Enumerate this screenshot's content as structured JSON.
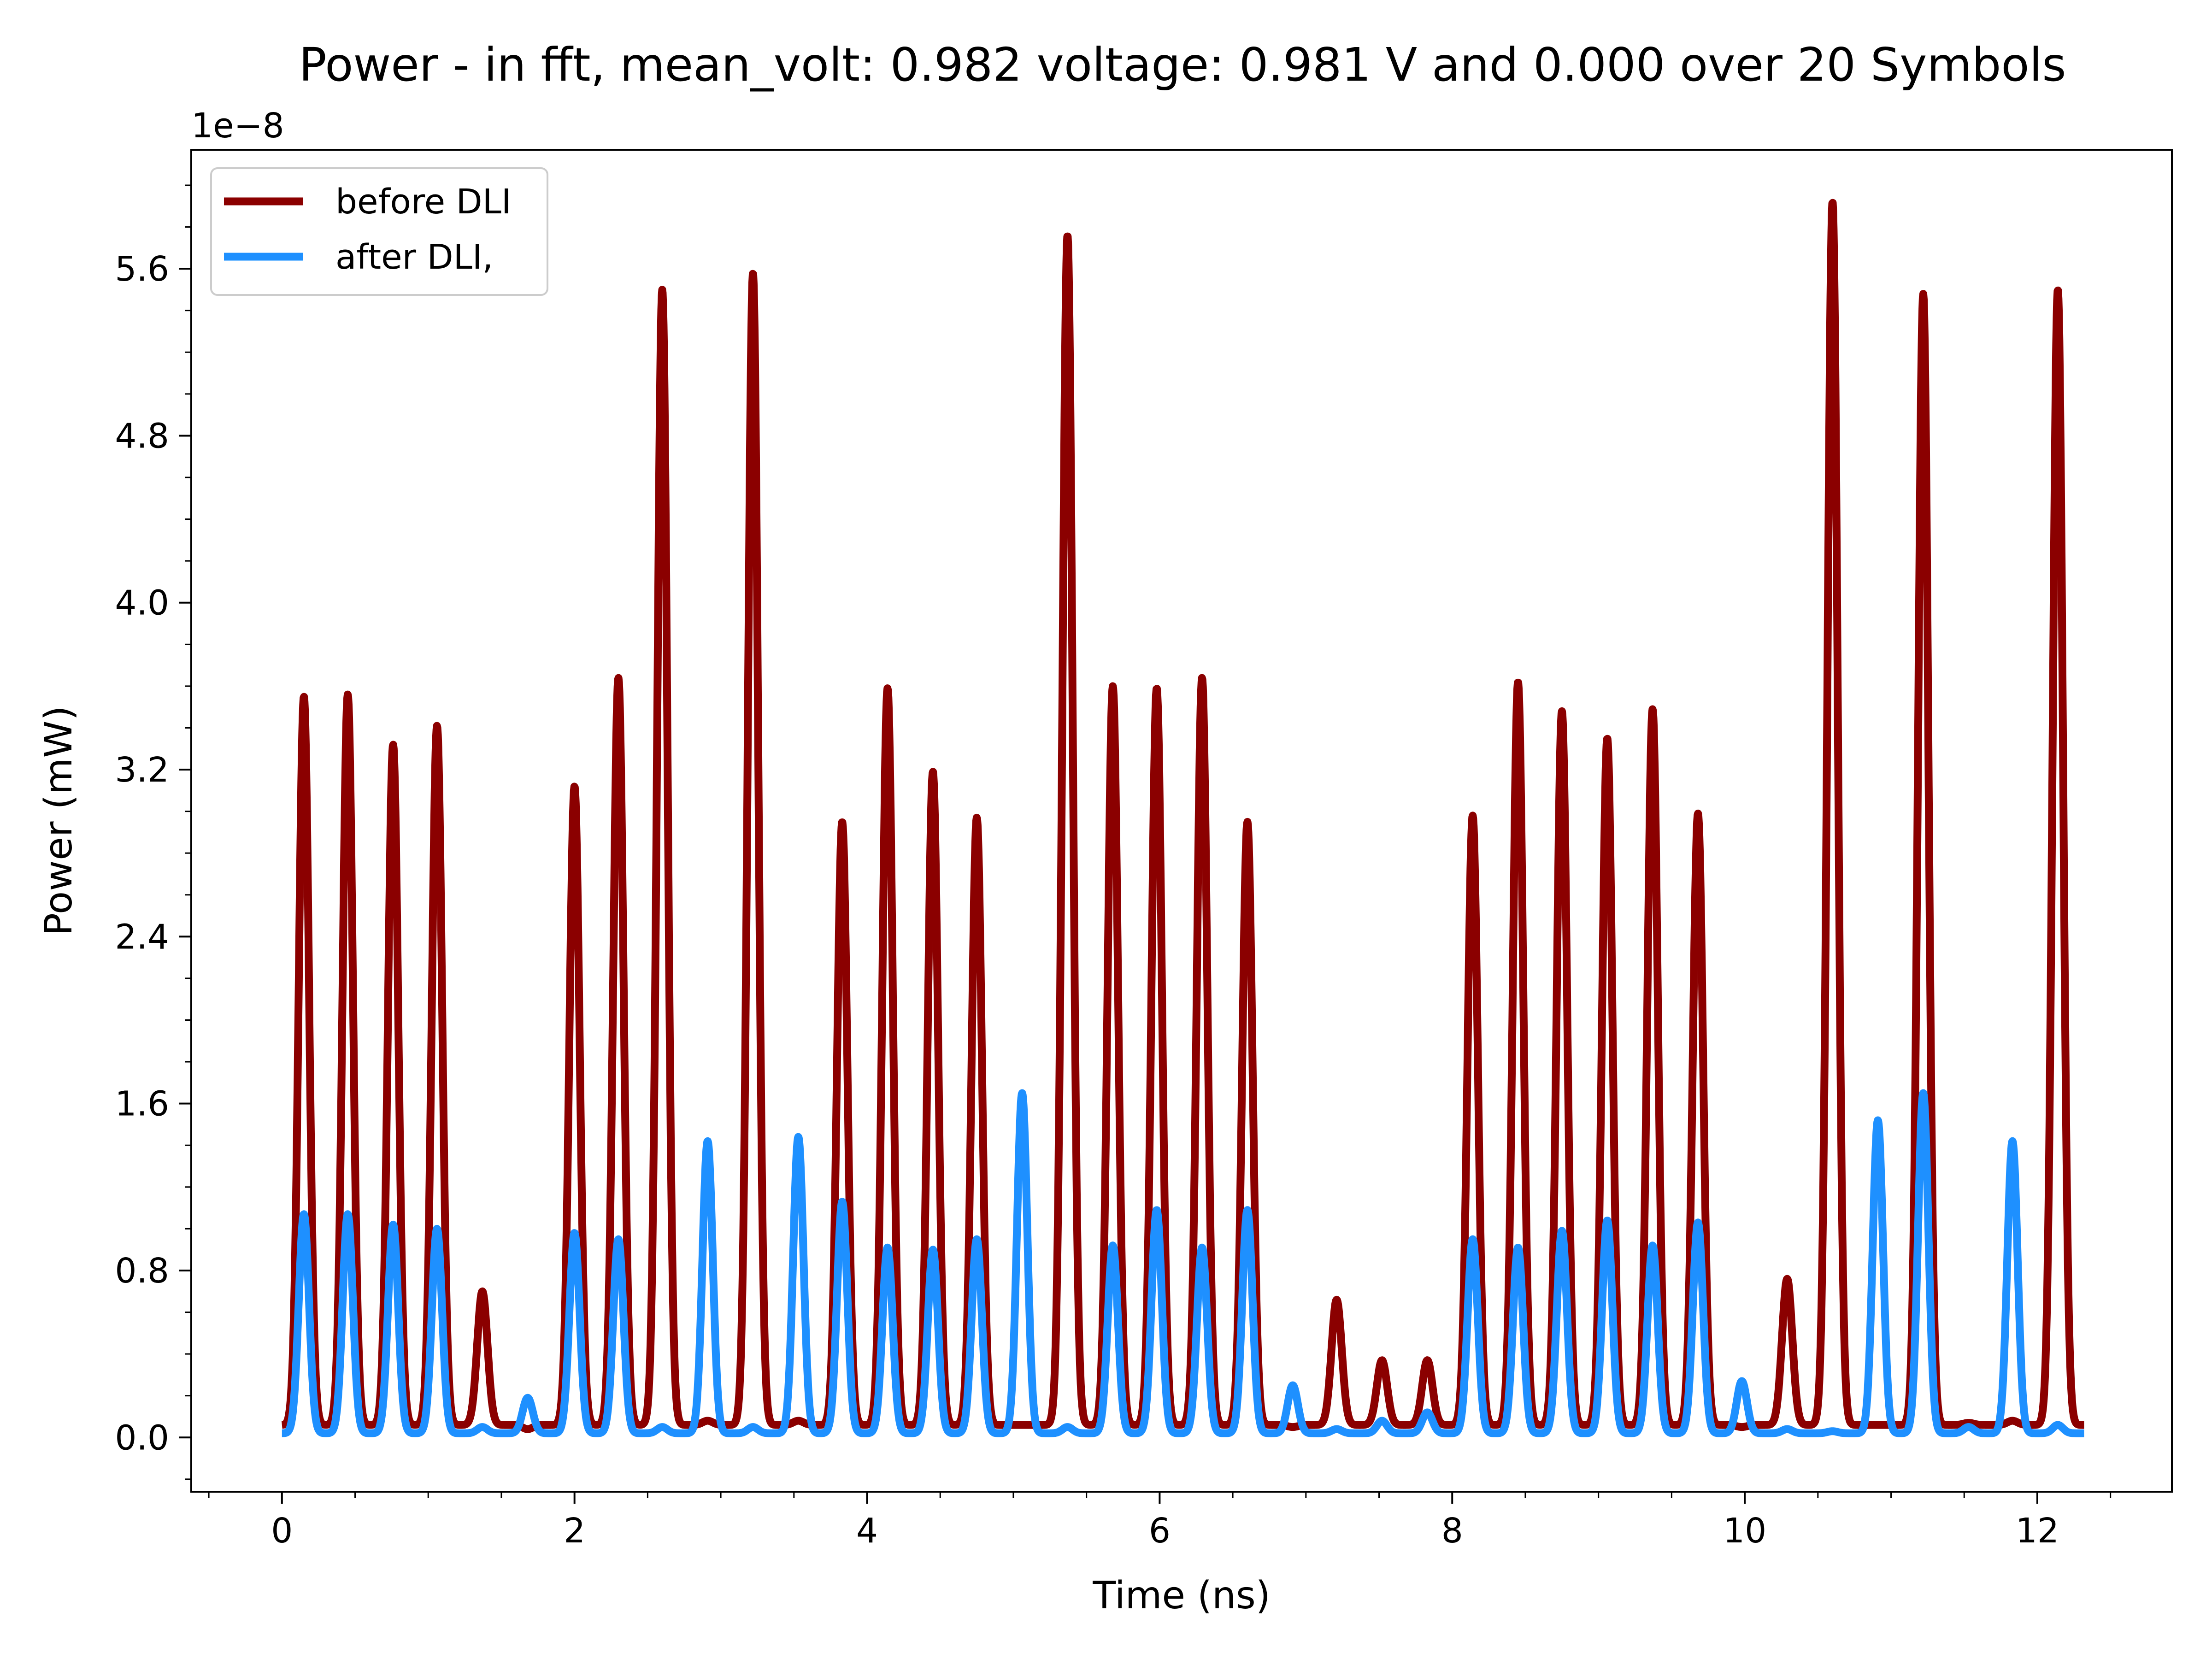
{
  "chart_data": {
    "type": "line",
    "title": "Power - in fft, mean_volt: 0.982 voltage: 0.981 V and 0.000 over 20 Symbols",
    "xlabel": "Time (ns)",
    "ylabel": "Power (mW)",
    "y_offset_label": "1e−8",
    "xlim": [
      -0.62,
      12.92
    ],
    "ylim": [
      -0.26,
      6.17
    ],
    "y_scale_factor": 1e-08,
    "xticks": [
      0,
      2,
      4,
      6,
      8,
      10,
      12
    ],
    "xtick_labels": [
      "0",
      "2",
      "4",
      "6",
      "8",
      "10",
      "12"
    ],
    "yticks": [
      0.0,
      0.8,
      1.6,
      2.4,
      3.2,
      4.0,
      4.8,
      5.6
    ],
    "ytick_labels": [
      "0.0",
      "0.8",
      "1.6",
      "2.4",
      "3.2",
      "4.0",
      "4.8",
      "5.6"
    ],
    "grid": false,
    "legend_position": "upper-left",
    "pulse_width_ns": 0.035,
    "series": [
      {
        "name": "before DLI",
        "color": "#8b0000",
        "baseline": 0.06,
        "x_range": [
          0,
          12.32
        ],
        "peaks_x": [
          0.15,
          0.45,
          0.76,
          1.06,
          1.37,
          1.68,
          2.0,
          2.3,
          2.6,
          2.91,
          3.22,
          3.53,
          3.83,
          4.14,
          4.45,
          4.75,
          5.06,
          5.37,
          5.68,
          5.98,
          6.29,
          6.6,
          6.91,
          7.21,
          7.52,
          7.83,
          8.14,
          8.45,
          8.75,
          9.06,
          9.37,
          9.68,
          9.98,
          10.29,
          10.6,
          10.91,
          11.22,
          11.53,
          11.83,
          12.14
        ],
        "peaks_y": [
          3.55,
          3.56,
          3.32,
          3.41,
          0.7,
          0.04,
          3.12,
          3.64,
          5.5,
          0.08,
          5.58,
          0.08,
          2.95,
          3.59,
          3.19,
          2.97,
          0.06,
          5.76,
          3.6,
          3.59,
          3.64,
          2.95,
          0.05,
          0.66,
          0.37,
          0.37,
          2.98,
          3.62,
          3.48,
          3.35,
          3.49,
          2.99,
          0.05,
          0.76,
          5.92,
          0.06,
          5.48,
          0.07,
          0.08,
          5.5
        ]
      },
      {
        "name": "after DLI,",
        "color": "#1e90ff",
        "baseline": 0.02,
        "x_range": [
          0,
          12.32
        ],
        "peaks_x": [
          0.15,
          0.45,
          0.76,
          1.06,
          1.37,
          1.68,
          2.0,
          2.3,
          2.6,
          2.91,
          3.22,
          3.53,
          3.83,
          4.14,
          4.45,
          4.75,
          5.06,
          5.37,
          5.68,
          5.98,
          6.29,
          6.6,
          6.91,
          7.21,
          7.52,
          7.83,
          8.14,
          8.45,
          8.75,
          9.06,
          9.37,
          9.68,
          9.98,
          10.29,
          10.6,
          10.91,
          11.22,
          11.53,
          11.83,
          12.14
        ],
        "peaks_y": [
          1.07,
          1.07,
          1.02,
          1.0,
          0.05,
          0.19,
          0.98,
          0.95,
          0.05,
          1.42,
          0.05,
          1.44,
          1.13,
          0.91,
          0.9,
          0.95,
          1.65,
          0.05,
          0.92,
          1.09,
          0.91,
          1.09,
          0.25,
          0.04,
          0.08,
          0.12,
          0.95,
          0.91,
          0.99,
          1.04,
          0.92,
          1.03,
          0.27,
          0.04,
          0.03,
          1.52,
          1.65,
          0.05,
          1.42,
          0.06
        ]
      }
    ]
  }
}
